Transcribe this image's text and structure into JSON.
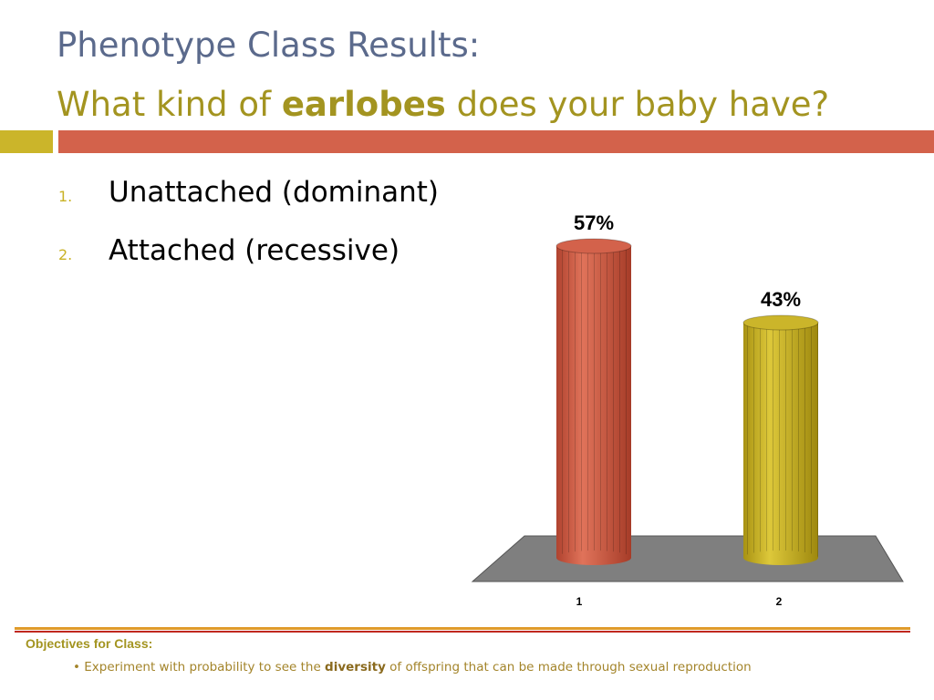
{
  "slide": {
    "title_line1": "Phenotype Class Results:",
    "title_line2_pre": "What kind of ",
    "title_line2_bold": "earlobes",
    "title_line2_post": " does your baby have?"
  },
  "list": [
    {
      "num": "1.",
      "text": "Unattached (dominant)"
    },
    {
      "num": "2.",
      "text": "Attached (recessive)"
    }
  ],
  "chart_data": {
    "type": "bar",
    "style": "3d-cylinder",
    "categories": [
      "1",
      "2"
    ],
    "values": [
      57,
      43
    ],
    "value_labels": [
      "57%",
      "43%"
    ],
    "colors": [
      "#d3624b",
      "#cbb52a"
    ],
    "ylim": [
      0,
      100
    ],
    "grid": false,
    "legend": "none",
    "title": "",
    "xlabel": "",
    "ylabel": ""
  },
  "footer": {
    "objectives_label": "Objectives for Class:",
    "bullet": "•",
    "item_pre": "Experiment with probability to see the ",
    "item_bold": "diversity",
    "item_post": " of offspring that can be made through sexual reproduction"
  }
}
